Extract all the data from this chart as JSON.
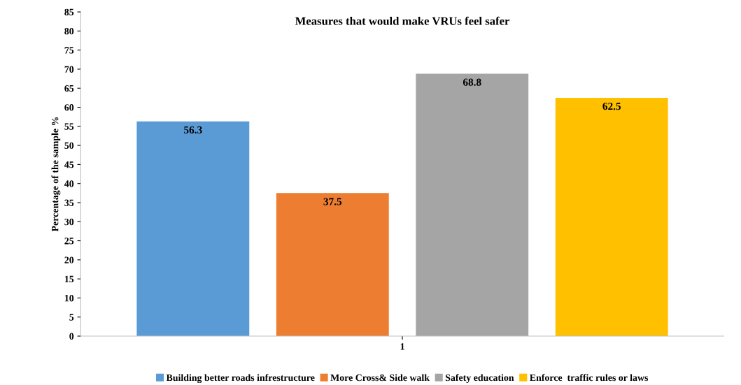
{
  "chart_data": {
    "type": "bar",
    "title": "Measures that would make VRUs feel safer",
    "ylabel": "Percentage of the sample %",
    "categories": [
      "1"
    ],
    "series": [
      {
        "name": "Building better roads infrestructure",
        "color": "#5b9bd5",
        "values": [
          56.3
        ]
      },
      {
        "name": "More Cross& Side walk",
        "color": "#ed7d31",
        "values": [
          37.5
        ]
      },
      {
        "name": "Safety education",
        "color": "#a5a5a5",
        "values": [
          68.8
        ]
      },
      {
        "name": "Enforce  traffic rules or laws",
        "color": "#ffc000",
        "values": [
          62.5
        ]
      }
    ],
    "ylim": [
      0,
      85
    ],
    "yticks": [
      0,
      5,
      10,
      15,
      20,
      25,
      30,
      35,
      40,
      45,
      50,
      55,
      60,
      65,
      70,
      75,
      80,
      85
    ],
    "data_labels": true,
    "grid": false,
    "legend": "bottom"
  }
}
